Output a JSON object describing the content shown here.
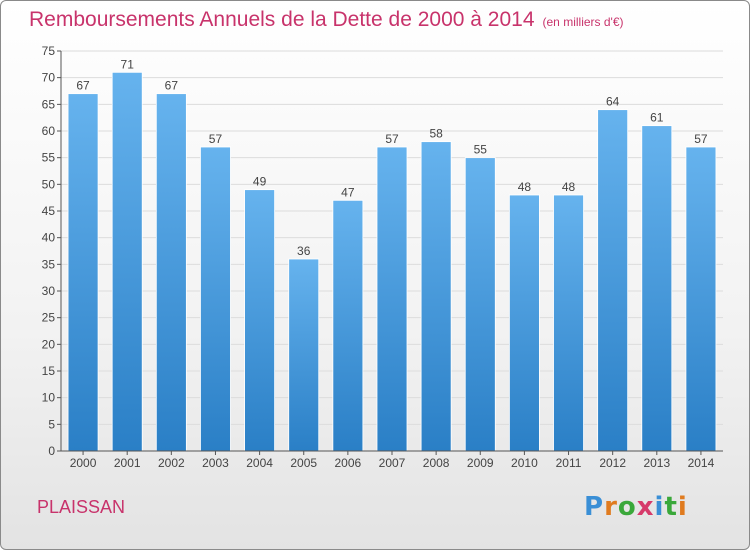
{
  "title": "Remboursements Annuels de la Dette de 2000 à 2014",
  "subtitle": "(en milliers d'€)",
  "commune": "PLAISSAN",
  "logo": {
    "letters": [
      "P",
      "r",
      "o",
      "x",
      "i",
      "t",
      "i"
    ],
    "colors": [
      "#3a8fd6",
      "#e07b1f",
      "#3aa83a",
      "#d63a6a",
      "#3a8fd6",
      "#3aa83a",
      "#e07b1f"
    ]
  },
  "colors": {
    "bar_light": "#66b3ee",
    "bar_dark": "#2a7fc6",
    "axis": "#555555",
    "grid": "#dcdcdc",
    "accent": "#c8336b"
  },
  "chart_data": {
    "type": "bar",
    "categories": [
      "2000",
      "2001",
      "2002",
      "2003",
      "2004",
      "2005",
      "2006",
      "2007",
      "2008",
      "2009",
      "2010",
      "2011",
      "2012",
      "2013",
      "2014"
    ],
    "values": [
      67,
      71,
      67,
      57,
      49,
      36,
      47,
      57,
      58,
      55,
      48,
      48,
      64,
      61,
      57
    ],
    "ylim": [
      0,
      75
    ],
    "yticks": [
      0,
      5,
      10,
      15,
      20,
      25,
      30,
      35,
      40,
      45,
      50,
      55,
      60,
      65,
      70,
      75
    ],
    "grid": true,
    "data_labels": true
  }
}
